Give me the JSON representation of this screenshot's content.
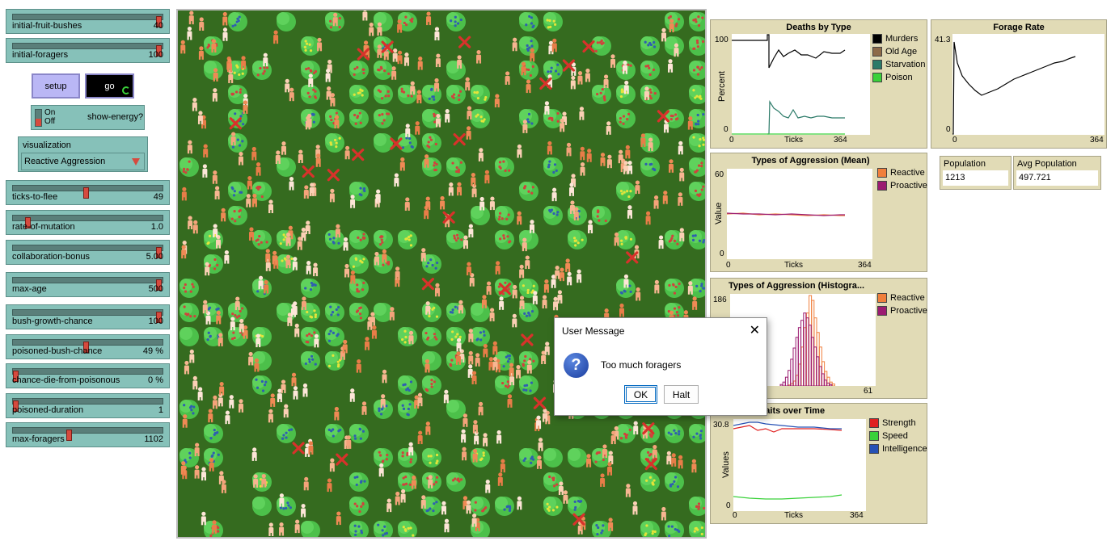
{
  "sliders": [
    {
      "id": "initial-fruit-bushes",
      "label": "initial-fruit-bushes",
      "value": "40",
      "position": 0.98
    },
    {
      "id": "initial-foragers",
      "label": "initial-foragers",
      "value": "100",
      "position": 0.98
    },
    {
      "id": "ticks-to-flee",
      "label": "ticks-to-flee",
      "value": "49",
      "position": 0.49
    },
    {
      "id": "rate-of-mutation",
      "label": "rate-of-mutation",
      "value": "1.0",
      "position": 0.1
    },
    {
      "id": "collaboration-bonus",
      "label": "collaboration-bonus",
      "value": "5.00",
      "position": 0.98
    },
    {
      "id": "max-age",
      "label": "max-age",
      "value": "500",
      "position": 0.98
    },
    {
      "id": "bush-growth-chance",
      "label": "bush-growth-chance",
      "value": "100",
      "position": 0.98
    },
    {
      "id": "poisoned-bush-chance",
      "label": "poisoned-bush-chance",
      "value": "49 %",
      "position": 0.49
    },
    {
      "id": "chance-die-from-poisonous",
      "label": "chance-die-from-poisonous",
      "value": "0 %",
      "position": 0.0
    },
    {
      "id": "poisoned-duration",
      "label": "poisoned-duration",
      "value": "1",
      "position": 0.0
    },
    {
      "id": "max-foragers",
      "label": "max-foragers",
      "value": "1102",
      "position": 0.38
    }
  ],
  "buttons": {
    "setup": "setup",
    "go": "go"
  },
  "switch": {
    "on": "On",
    "off": "Off",
    "label": "show-energy?"
  },
  "chooser": {
    "label": "visualization",
    "value": "Reactive Aggression"
  },
  "plots": {
    "deaths": {
      "title": "Deaths by Type",
      "ylabel": "Percent",
      "xlabel": "Ticks",
      "ymax": "100",
      "ymin": "0",
      "xmin": "0",
      "xmax": "364",
      "legend": [
        {
          "name": "Murders",
          "color": "#000000"
        },
        {
          "name": "Old Age",
          "color": "#8d6a48"
        },
        {
          "name": "Starvation",
          "color": "#2b7a68"
        },
        {
          "name": "Poison",
          "color": "#3ad13a"
        }
      ]
    },
    "forage": {
      "title": "Forage Rate",
      "ymax": "41.3",
      "ymin": "0",
      "xmin": "0",
      "xmax": "364"
    },
    "aggr_mean": {
      "title": "Types of Aggression (Mean)",
      "ylabel": "Value",
      "xlabel": "Ticks",
      "ymax": "60",
      "ymin": "0",
      "xmin": "0",
      "xmax": "364",
      "legend": [
        {
          "name": "Reactive",
          "color": "#f07f3c"
        },
        {
          "name": "Proactive",
          "color": "#9b1b71"
        }
      ]
    },
    "aggr_hist": {
      "title": "Types of Aggression (Histogra...",
      "ymax": "186",
      "xmax": "61",
      "legend": [
        {
          "name": "Reactive",
          "color": "#f07f3c"
        },
        {
          "name": "Proactive",
          "color": "#9b1b71"
        }
      ]
    },
    "traits": {
      "title": "raits over Time",
      "ylabel": "Values",
      "xlabel": "Ticks",
      "ymax": "30.8",
      "ymin": "0",
      "xmin": "0",
      "xmax": "364",
      "legend": [
        {
          "name": "Strength",
          "color": "#e02020"
        },
        {
          "name": "Speed",
          "color": "#3ad13a"
        },
        {
          "name": "Intelligence",
          "color": "#2651b5"
        }
      ]
    }
  },
  "monitors": {
    "population": {
      "label": "Population",
      "value": "1213"
    },
    "avg_population": {
      "label": "Avg Population",
      "value": "497.721"
    }
  },
  "dialog": {
    "title": "User Message",
    "message": "Too much foragers",
    "ok": "OK",
    "halt": "Halt"
  }
}
